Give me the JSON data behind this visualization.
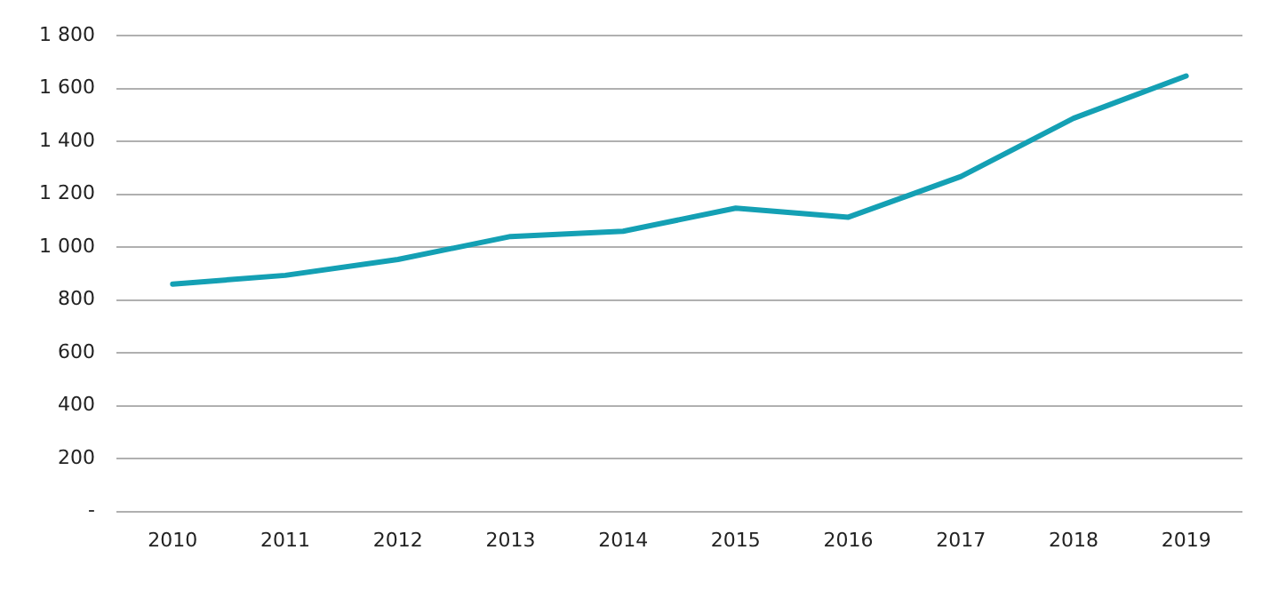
{
  "chart_data": {
    "type": "line",
    "categories": [
      "2010",
      "2011",
      "2012",
      "2013",
      "2014",
      "2015",
      "2016",
      "2017",
      "2018",
      "2019"
    ],
    "series": [
      {
        "color": "#14a0b4",
        "values": [
          860,
          893,
          953,
          1040,
          1060,
          1147,
          1113,
          1267,
          1487,
          1647
        ]
      }
    ],
    "ylim": [
      0,
      1800
    ],
    "yticks": [
      {
        "value": 0,
        "label": "-"
      },
      {
        "value": 200,
        "label": "200"
      },
      {
        "value": 400,
        "label": "400"
      },
      {
        "value": 600,
        "label": "600"
      },
      {
        "value": 800,
        "label": "800"
      },
      {
        "value": 1000,
        "label": "1 000"
      },
      {
        "value": 1200,
        "label": "1 200"
      },
      {
        "value": 1400,
        "label": "1 400"
      },
      {
        "value": 1600,
        "label": "1 600"
      },
      {
        "value": 1800,
        "label": "1 800"
      }
    ],
    "grid": "y",
    "legend": false,
    "marker": "none",
    "line_style": "solid"
  }
}
